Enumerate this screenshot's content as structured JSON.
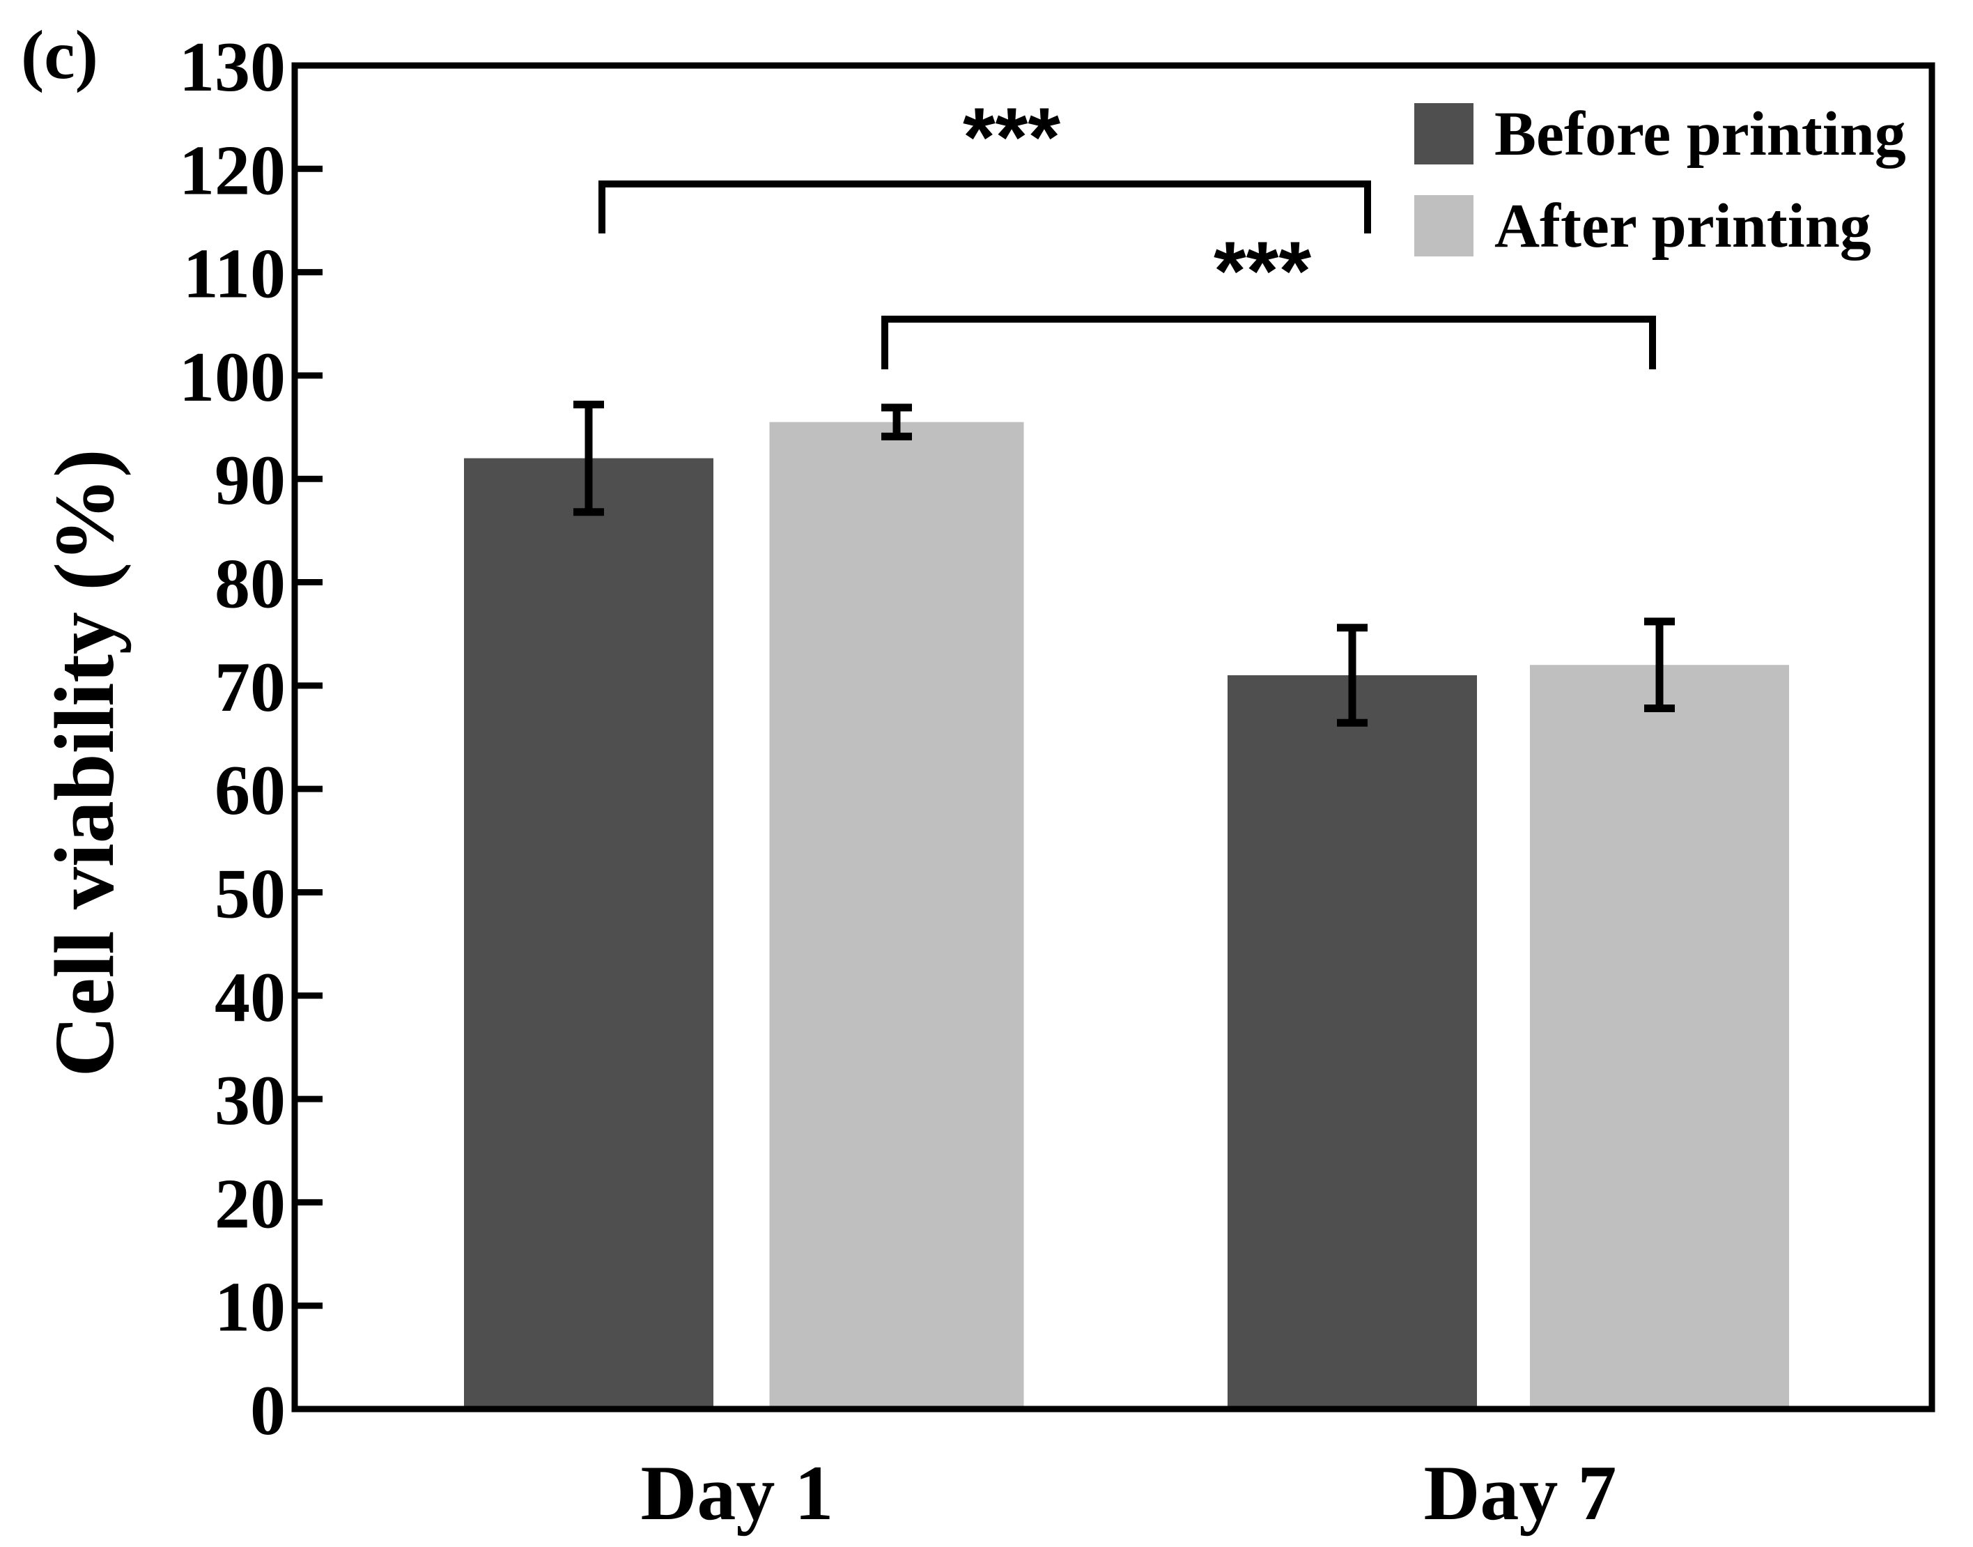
{
  "chart_data": {
    "type": "bar",
    "panel_label": "(c)",
    "title": "",
    "xlabel": "",
    "ylabel": "Cell viability (%)",
    "ylim": [
      0,
      130
    ],
    "yticks": [
      0,
      10,
      20,
      30,
      40,
      50,
      60,
      70,
      80,
      90,
      100,
      110,
      120,
      130
    ],
    "categories": [
      "Day 1",
      "Day 7"
    ],
    "series": [
      {
        "name": "Before printing",
        "color": "#4f4f4f",
        "values": [
          92,
          71
        ],
        "errors": [
          5.2,
          4.6
        ]
      },
      {
        "name": "After printing",
        "color": "#bfbfbf",
        "values": [
          95.5,
          72
        ],
        "errors": [
          1.4,
          4.2
        ]
      }
    ],
    "legend_position": "top-right",
    "significance": [
      {
        "label": "***",
        "from": {
          "category": "Day 1",
          "series": "Before printing"
        },
        "to": {
          "category": "Day 7",
          "series": "Before printing"
        }
      },
      {
        "label": "***",
        "from": {
          "category": "Day 1",
          "series": "After printing"
        },
        "to": {
          "category": "Day 7",
          "series": "After printing"
        }
      }
    ]
  }
}
